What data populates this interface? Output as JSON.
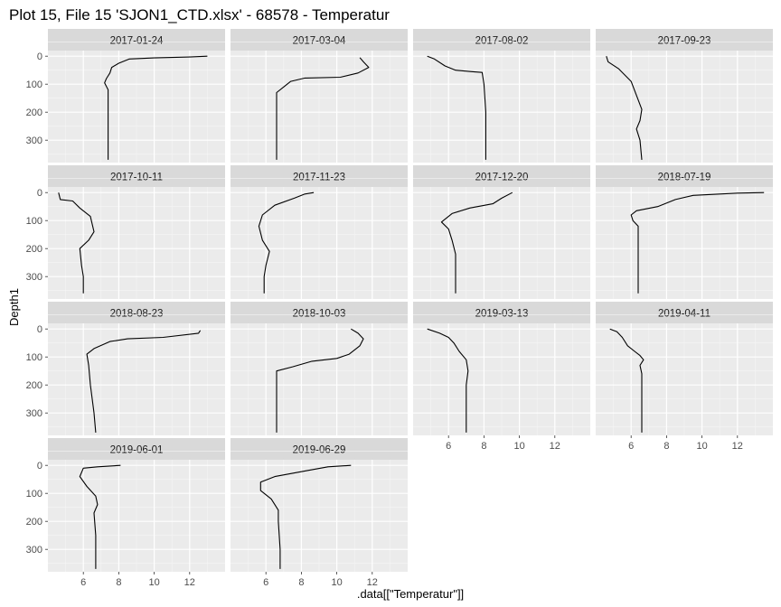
{
  "chart_data": {
    "type": "line",
    "title": "Plot 15, File 15 'SJON1_CTD.xlsx' - 68578  -  Temperatur",
    "xlabel": ".data[[\"Temperatur\"]]",
    "ylabel": "Depth1",
    "xlim": [
      4.0,
      14.0
    ],
    "ylim": [
      380,
      -20
    ],
    "y_reversed": true,
    "x_ticks": [
      6,
      8,
      10,
      12
    ],
    "y_ticks": [
      0,
      100,
      200,
      300
    ],
    "grid": true,
    "facet_layout": {
      "rows": 4,
      "cols": 4
    },
    "line_color": "#000000",
    "panel_bg": "#ebebeb",
    "strip_bg": "#d9d9d9",
    "panels": [
      {
        "label": "2017-01-24",
        "points": [
          [
            13.0,
            0
          ],
          [
            12.0,
            3
          ],
          [
            10.0,
            6
          ],
          [
            8.6,
            10
          ],
          [
            8.0,
            25
          ],
          [
            7.6,
            40
          ],
          [
            7.5,
            60
          ],
          [
            7.3,
            80
          ],
          [
            7.2,
            95
          ],
          [
            7.4,
            120
          ],
          [
            7.4,
            200
          ],
          [
            7.4,
            300
          ],
          [
            7.4,
            370
          ]
        ]
      },
      {
        "label": "2017-03-04",
        "points": [
          [
            11.3,
            5
          ],
          [
            11.5,
            20
          ],
          [
            11.8,
            40
          ],
          [
            11.2,
            60
          ],
          [
            10.2,
            75
          ],
          [
            8.2,
            78
          ],
          [
            7.4,
            90
          ],
          [
            7.0,
            110
          ],
          [
            6.6,
            130
          ],
          [
            6.6,
            200
          ],
          [
            6.6,
            300
          ],
          [
            6.6,
            370
          ]
        ]
      },
      {
        "label": "2017-08-02",
        "points": [
          [
            4.8,
            0
          ],
          [
            5.2,
            10
          ],
          [
            5.8,
            35
          ],
          [
            6.4,
            50
          ],
          [
            7.3,
            55
          ],
          [
            7.9,
            58
          ],
          [
            8.0,
            100
          ],
          [
            8.1,
            200
          ],
          [
            8.1,
            300
          ],
          [
            8.1,
            370
          ]
        ]
      },
      {
        "label": "2017-09-23",
        "points": [
          [
            4.6,
            0
          ],
          [
            4.7,
            20
          ],
          [
            5.3,
            45
          ],
          [
            6.0,
            90
          ],
          [
            6.3,
            140
          ],
          [
            6.6,
            190
          ],
          [
            6.5,
            230
          ],
          [
            6.3,
            260
          ],
          [
            6.5,
            300
          ],
          [
            6.6,
            370
          ]
        ]
      },
      {
        "label": "2017-10-11",
        "points": [
          [
            4.6,
            0
          ],
          [
            4.7,
            25
          ],
          [
            5.4,
            30
          ],
          [
            5.8,
            55
          ],
          [
            6.4,
            85
          ],
          [
            6.6,
            140
          ],
          [
            6.3,
            170
          ],
          [
            5.8,
            200
          ],
          [
            5.9,
            260
          ],
          [
            6.0,
            300
          ],
          [
            6.0,
            360
          ]
        ]
      },
      {
        "label": "2017-11-23",
        "points": [
          [
            8.7,
            0
          ],
          [
            8.2,
            5
          ],
          [
            7.6,
            20
          ],
          [
            6.5,
            45
          ],
          [
            5.8,
            80
          ],
          [
            5.6,
            120
          ],
          [
            5.8,
            170
          ],
          [
            6.2,
            210
          ],
          [
            6.0,
            260
          ],
          [
            5.9,
            300
          ],
          [
            5.9,
            360
          ]
        ]
      },
      {
        "label": "2017-12-20",
        "points": [
          [
            9.6,
            0
          ],
          [
            9.0,
            20
          ],
          [
            8.5,
            40
          ],
          [
            7.2,
            55
          ],
          [
            6.2,
            75
          ],
          [
            5.6,
            105
          ],
          [
            6.0,
            130
          ],
          [
            6.2,
            170
          ],
          [
            6.4,
            220
          ],
          [
            6.4,
            300
          ],
          [
            6.4,
            360
          ]
        ]
      },
      {
        "label": "2018-07-19",
        "points": [
          [
            13.5,
            0
          ],
          [
            12.0,
            2
          ],
          [
            9.5,
            10
          ],
          [
            8.5,
            25
          ],
          [
            7.5,
            50
          ],
          [
            6.3,
            65
          ],
          [
            6.0,
            80
          ],
          [
            6.1,
            100
          ],
          [
            6.4,
            120
          ],
          [
            6.4,
            200
          ],
          [
            6.4,
            300
          ],
          [
            6.4,
            360
          ]
        ]
      },
      {
        "label": "2018-08-23",
        "points": [
          [
            12.6,
            5
          ],
          [
            12.5,
            15
          ],
          [
            10.5,
            30
          ],
          [
            8.5,
            35
          ],
          [
            7.5,
            45
          ],
          [
            6.6,
            70
          ],
          [
            6.2,
            90
          ],
          [
            6.3,
            130
          ],
          [
            6.4,
            200
          ],
          [
            6.6,
            300
          ],
          [
            6.7,
            370
          ]
        ]
      },
      {
        "label": "2018-10-03",
        "points": [
          [
            10.8,
            0
          ],
          [
            11.2,
            15
          ],
          [
            11.5,
            35
          ],
          [
            11.3,
            60
          ],
          [
            10.7,
            90
          ],
          [
            10.0,
            105
          ],
          [
            8.6,
            115
          ],
          [
            7.5,
            135
          ],
          [
            6.6,
            150
          ],
          [
            6.6,
            200
          ],
          [
            6.6,
            300
          ],
          [
            6.6,
            370
          ]
        ]
      },
      {
        "label": "2019-03-13",
        "points": [
          [
            4.8,
            0
          ],
          [
            5.5,
            15
          ],
          [
            6.0,
            30
          ],
          [
            6.3,
            50
          ],
          [
            6.6,
            80
          ],
          [
            7.0,
            110
          ],
          [
            7.1,
            150
          ],
          [
            7.0,
            200
          ],
          [
            7.0,
            300
          ],
          [
            7.0,
            370
          ]
        ]
      },
      {
        "label": "2019-04-11",
        "points": [
          [
            4.8,
            0
          ],
          [
            5.2,
            10
          ],
          [
            5.5,
            30
          ],
          [
            5.8,
            60
          ],
          [
            6.2,
            80
          ],
          [
            6.5,
            95
          ],
          [
            6.7,
            110
          ],
          [
            6.5,
            130
          ],
          [
            6.6,
            160
          ],
          [
            6.6,
            200
          ],
          [
            6.6,
            300
          ],
          [
            6.6,
            370
          ]
        ]
      },
      {
        "label": "2019-06-01",
        "points": [
          [
            8.1,
            0
          ],
          [
            6.8,
            5
          ],
          [
            6.0,
            10
          ],
          [
            5.8,
            40
          ],
          [
            6.2,
            75
          ],
          [
            6.7,
            110
          ],
          [
            6.8,
            140
          ],
          [
            6.6,
            170
          ],
          [
            6.7,
            250
          ],
          [
            6.7,
            300
          ],
          [
            6.7,
            370
          ]
        ]
      },
      {
        "label": "2019-06-29",
        "points": [
          [
            10.8,
            0
          ],
          [
            9.5,
            5
          ],
          [
            8.2,
            20
          ],
          [
            6.5,
            40
          ],
          [
            5.7,
            60
          ],
          [
            5.7,
            90
          ],
          [
            6.3,
            120
          ],
          [
            6.7,
            160
          ],
          [
            6.7,
            200
          ],
          [
            6.8,
            300
          ],
          [
            6.8,
            370
          ]
        ]
      }
    ]
  }
}
